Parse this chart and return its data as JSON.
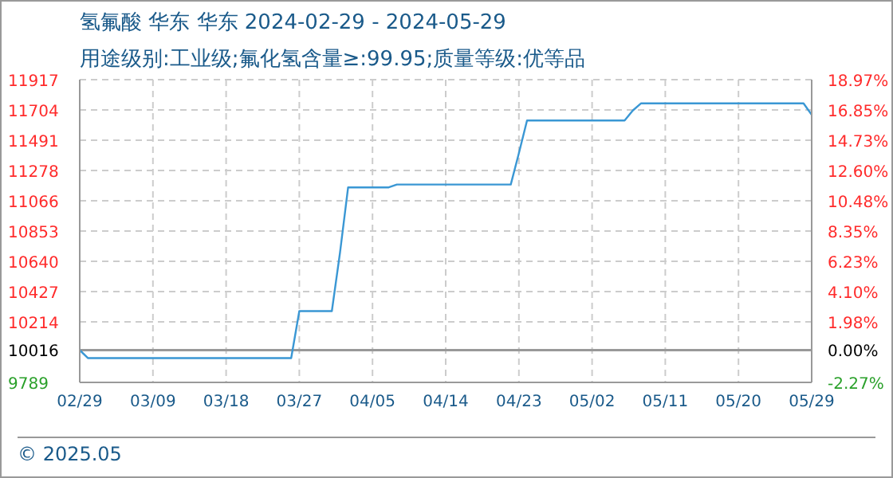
{
  "chart_data": {
    "type": "line",
    "title": "氢氟酸 华东 华东 2024-02-29 - 2024-05-29",
    "subtitle": "用途级别:工业级;氟化氢含量≥:99.95;质量等级:优等品",
    "annotations": [
      "© 2025.05"
    ],
    "x": [
      "--02-29",
      "--03-01",
      "--03-26",
      "--03-27",
      "--03-31",
      "--04-01",
      "--04-02",
      "--04-07",
      "--04-08",
      "--04-22",
      "--04-23",
      "--04-24",
      "--05-06",
      "--05-07",
      "--05-08",
      "--05-28",
      "--05-29"
    ],
    "series": [
      {
        "color": "#3a97d4",
        "values": [
          10016,
          9960,
          9960,
          10290,
          10290,
          10700,
          11160,
          11160,
          11180,
          11180,
          11400,
          11630,
          11630,
          11700,
          11750,
          11750,
          11670
        ]
      }
    ],
    "xlim": [
      "--02-29",
      "--05-29"
    ],
    "xticks": [
      {
        "value": "--02-29",
        "label": "02/29"
      },
      {
        "value": "--03-09",
        "label": "03/09"
      },
      {
        "value": "--03-18",
        "label": "03/18"
      },
      {
        "value": "--03-27",
        "label": "03/27"
      },
      {
        "value": "--04-05",
        "label": "04/05"
      },
      {
        "value": "--04-14",
        "label": "04/14"
      },
      {
        "value": "--04-23",
        "label": "04/23"
      },
      {
        "value": "--05-02",
        "label": "05/02"
      },
      {
        "value": "--05-11",
        "label": "05/11"
      },
      {
        "value": "--05-20",
        "label": "05/20"
      },
      {
        "value": "--05-29",
        "label": "05/29"
      }
    ],
    "ylim": [
      9789,
      11917
    ],
    "yticks": [
      9789,
      10016,
      10214,
      10427,
      10640,
      10853,
      11066,
      11278,
      11491,
      11704,
      11917
    ],
    "y2lim": [
      -2.27,
      18.97
    ],
    "y2ticks": [
      {
        "value": -2.27,
        "label": "-2.27%"
      },
      {
        "value": 0,
        "label": "0.00%"
      },
      {
        "value": 1.98,
        "label": "1.98%"
      },
      {
        "value": 4.1,
        "label": "4.10%"
      },
      {
        "value": 6.23,
        "label": "6.23%"
      },
      {
        "value": 8.35,
        "label": "8.35%"
      },
      {
        "value": 10.48,
        "label": "10.48%"
      },
      {
        "value": 12.6,
        "label": "12.60%"
      },
      {
        "value": 14.73,
        "label": "14.73%"
      },
      {
        "value": 16.85,
        "label": "16.85%"
      },
      {
        "value": 18.97,
        "label": "18.97%"
      }
    ],
    "ref_lines": [
      {
        "axis": "y",
        "value": 10016,
        "color": "#999999",
        "line_style": "solid"
      }
    ],
    "grid": true,
    "marker": "none",
    "line_style": "solid"
  }
}
